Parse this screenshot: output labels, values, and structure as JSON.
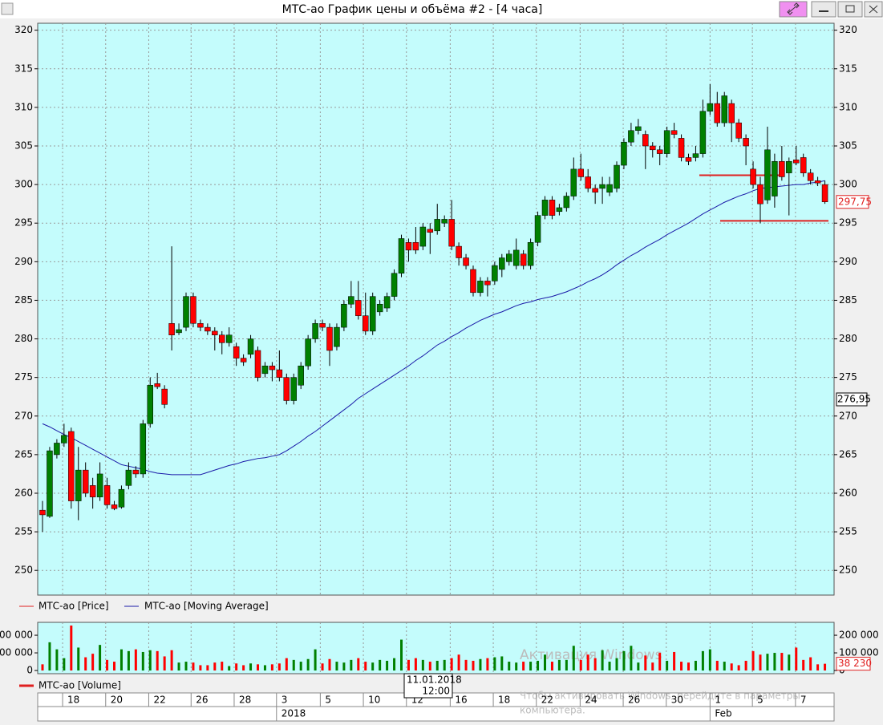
{
  "chart_data": {
    "type": "candlestick",
    "title": "МТС-ао График цены и объёма #2 - [4 часа]",
    "ylim": [
      246.8,
      320.9
    ],
    "yticks": [
      250,
      255,
      260,
      265,
      270,
      275,
      280,
      285,
      290,
      295,
      300,
      305,
      310,
      315,
      320
    ],
    "grid": true,
    "up_color": "#008000",
    "down_color": "#ff0000",
    "series": [
      {
        "name": "МТС-ао [Price]",
        "color": "#e02020",
        "values": [
          [
            257.8,
            259,
            255,
            257.2
          ],
          [
            257,
            266,
            256.8,
            265.5
          ],
          [
            265,
            267,
            264.5,
            266.5
          ],
          [
            266.5,
            269,
            266,
            267.5
          ],
          [
            268,
            268.5,
            258,
            259
          ],
          [
            259,
            266,
            256.5,
            263
          ],
          [
            263,
            264,
            259.5,
            260
          ],
          [
            261,
            262,
            258,
            259.5
          ],
          [
            259.5,
            264,
            259,
            262.5
          ],
          [
            261,
            262,
            258,
            258.5
          ],
          [
            258.5,
            259,
            257.8,
            258
          ],
          [
            258.2,
            261,
            258,
            260.5
          ],
          [
            261,
            264,
            260.5,
            263
          ],
          [
            263,
            263.5,
            262,
            262.5
          ],
          [
            262.5,
            269.5,
            262,
            269
          ],
          [
            269,
            275,
            268.5,
            274
          ],
          [
            274.2,
            275.6,
            273.5,
            273.8
          ],
          [
            273.5,
            274,
            271,
            271.5
          ],
          [
            282,
            292,
            278.5,
            280.5
          ],
          [
            280.8,
            282,
            280.5,
            281.2
          ],
          [
            281.5,
            286,
            281,
            285.5
          ],
          [
            285.5,
            286,
            281.5,
            282
          ],
          [
            282,
            282.5,
            281,
            281.5
          ],
          [
            281.5,
            282,
            280.5,
            281
          ],
          [
            281,
            281.5,
            278.5,
            280.5
          ],
          [
            280.5,
            281,
            278,
            279.5
          ],
          [
            279.5,
            281.5,
            279,
            280.5
          ],
          [
            279,
            279.5,
            276.5,
            277.5
          ],
          [
            277.5,
            278,
            276.5,
            277
          ],
          [
            278,
            280.5,
            277.5,
            280
          ],
          [
            278.5,
            279,
            274.5,
            275
          ],
          [
            275.5,
            277,
            275,
            276.5
          ],
          [
            276.5,
            277,
            274.5,
            276
          ],
          [
            276,
            278.5,
            274.5,
            275
          ],
          [
            275,
            275.5,
            271.5,
            272
          ],
          [
            272,
            275.5,
            271.5,
            275
          ],
          [
            274,
            277,
            273.5,
            276.5
          ],
          [
            276.5,
            280.5,
            276,
            280
          ],
          [
            280,
            282.5,
            279.5,
            282
          ],
          [
            282,
            282.5,
            281,
            281.5
          ],
          [
            281.5,
            282,
            276.5,
            278.5
          ],
          [
            279,
            282,
            278.5,
            281.5
          ],
          [
            281.5,
            285,
            281,
            284.5
          ],
          [
            284.5,
            287.5,
            284,
            285.5
          ],
          [
            285,
            287.5,
            282.5,
            283
          ],
          [
            283,
            286,
            280.5,
            281
          ],
          [
            281,
            286,
            280.5,
            285.5
          ],
          [
            283.5,
            285,
            283,
            284.5
          ],
          [
            284,
            286,
            283.5,
            285.5
          ],
          [
            285.5,
            289,
            285,
            288.5
          ],
          [
            288.5,
            293.5,
            288,
            293
          ],
          [
            292.5,
            293,
            290,
            291.5
          ],
          [
            292.5,
            294.5,
            291,
            291.5
          ],
          [
            292,
            295,
            291.5,
            294.5
          ],
          [
            294.2,
            295,
            291,
            293.8
          ],
          [
            294,
            297.5,
            293.5,
            295.5
          ],
          [
            295,
            296,
            294.5,
            295.5
          ],
          [
            295.5,
            298,
            291.5,
            292
          ],
          [
            292,
            292.5,
            289.5,
            290.5
          ],
          [
            290.5,
            291,
            289,
            289.5
          ],
          [
            289,
            289.5,
            285.5,
            286
          ],
          [
            286,
            288,
            285.5,
            287.5
          ],
          [
            287.5,
            288,
            285.5,
            287
          ],
          [
            287.5,
            290,
            287,
            289.5
          ],
          [
            289,
            291,
            288,
            290.5
          ],
          [
            290,
            291.5,
            289.5,
            291
          ],
          [
            289.5,
            293,
            289,
            291.5
          ],
          [
            291,
            291.5,
            289,
            289.5
          ],
          [
            289.5,
            293,
            289,
            292.5
          ],
          [
            292.5,
            296.5,
            292,
            296
          ],
          [
            296,
            298.5,
            295.5,
            298
          ],
          [
            298,
            298.5,
            295.5,
            296
          ],
          [
            296.5,
            297.5,
            296,
            297
          ],
          [
            297,
            299,
            296.5,
            298.5
          ],
          [
            298.5,
            303.5,
            298,
            302
          ],
          [
            302,
            304,
            300.5,
            301
          ],
          [
            301,
            302,
            299,
            299.5
          ],
          [
            299.5,
            300,
            297.5,
            299
          ],
          [
            299.5,
            301,
            297.5,
            300
          ],
          [
            299,
            301,
            298.5,
            300
          ],
          [
            299.5,
            303,
            299,
            302.5
          ],
          [
            302.5,
            306,
            302,
            305.5
          ],
          [
            305.5,
            308,
            305,
            307
          ],
          [
            307,
            308.5,
            306.5,
            307.5
          ],
          [
            306.5,
            307,
            302,
            305
          ],
          [
            305,
            305.5,
            303.5,
            304.5
          ],
          [
            304.5,
            305,
            302.5,
            304
          ],
          [
            304,
            307.5,
            303.5,
            307
          ],
          [
            307,
            308,
            306,
            306.5
          ],
          [
            306,
            306.5,
            303,
            303.5
          ],
          [
            303.5,
            304,
            302.5,
            303
          ],
          [
            303.5,
            305,
            303,
            304
          ],
          [
            304,
            311,
            303.5,
            309.5
          ],
          [
            309.5,
            313,
            309,
            310.5
          ],
          [
            310.5,
            312,
            307.5,
            308
          ],
          [
            308,
            312,
            307.5,
            311.5
          ],
          [
            310.5,
            311,
            305.5,
            308
          ],
          [
            308,
            308.5,
            305.5,
            306
          ],
          [
            306,
            306.5,
            302.5,
            305
          ],
          [
            302,
            303,
            299.5,
            300
          ],
          [
            300,
            301,
            295,
            297.5
          ],
          [
            298,
            307.5,
            297.5,
            304.5
          ],
          [
            298.5,
            304,
            297,
            303
          ],
          [
            303,
            305,
            300.5,
            301
          ],
          [
            301.5,
            303.5,
            296,
            303
          ],
          [
            303.2,
            305,
            302.5,
            302.8
          ],
          [
            303.5,
            304,
            301,
            301.5
          ],
          [
            301.5,
            302,
            300,
            300.5
          ],
          [
            300.5,
            301,
            299.8,
            300.2
          ],
          [
            300,
            300.5,
            297.5,
            297.75
          ]
        ]
      },
      {
        "name": "МТС-ао [Moving Average]",
        "color": "#1a1aa8",
        "values": [
          269.0,
          268.6,
          268.1,
          267.6,
          267.2,
          266.7,
          266.2,
          265.7,
          265.2,
          264.7,
          264.2,
          263.7,
          263.5,
          263.3,
          263.1,
          262.8,
          262.6,
          262.5,
          262.4,
          262.4,
          262.4,
          262.4,
          262.4,
          262.7,
          263.0,
          263.3,
          263.6,
          263.8,
          264.1,
          264.3,
          264.5,
          264.6,
          264.8,
          265.0,
          265.5,
          266.1,
          266.7,
          267.4,
          268.0,
          268.7,
          269.4,
          270.1,
          270.8,
          271.5,
          272.3,
          272.9,
          273.5,
          274.1,
          274.7,
          275.3,
          275.9,
          276.5,
          277.2,
          277.8,
          278.5,
          279.2,
          279.7,
          280.3,
          280.8,
          281.4,
          281.9,
          282.4,
          282.8,
          283.2,
          283.5,
          283.9,
          284.3,
          284.6,
          284.8,
          285.1,
          285.3,
          285.5,
          285.8,
          286.1,
          286.5,
          286.9,
          287.4,
          287.8,
          288.3,
          288.9,
          289.6,
          290.2,
          290.8,
          291.3,
          291.9,
          292.4,
          292.9,
          293.5,
          294.0,
          294.5,
          295.0,
          295.6,
          296.2,
          296.7,
          297.2,
          297.7,
          298.1,
          298.5,
          298.8,
          299.2,
          299.5,
          299.6,
          299.7,
          299.8,
          299.9,
          300.0,
          300.0,
          300.2,
          300.3,
          300.5
        ]
      }
    ],
    "levels": [
      301.2,
      295.3
    ],
    "level_color": "#e02020",
    "last_price": {
      "value": 297.75,
      "label": "297,75"
    },
    "side_label": "276,95",
    "volume": {
      "name": "МТС-ао [Volume]",
      "color": "#e02020",
      "ylim": [
        -18000,
        273000
      ],
      "yticks": [
        0,
        {
          "value": 100000,
          "label": "100 000"
        },
        {
          "value": 200000,
          "label": "200 000"
        }
      ],
      "last": {
        "value": 38230,
        "label": "38 230"
      },
      "values": [
        35000,
        160000,
        120000,
        70000,
        255000,
        130000,
        75000,
        95000,
        145000,
        60000,
        50000,
        120000,
        110000,
        120000,
        105000,
        115000,
        110000,
        80000,
        115000,
        45000,
        50000,
        45000,
        30000,
        30000,
        45000,
        50000,
        25000,
        40000,
        30000,
        40000,
        35000,
        30000,
        35000,
        40000,
        70000,
        60000,
        50000,
        65000,
        120000,
        40000,
        65000,
        50000,
        45000,
        60000,
        70000,
        50000,
        45000,
        60000,
        55000,
        70000,
        175000,
        60000,
        70000,
        60000,
        50000,
        55000,
        60000,
        70000,
        90000,
        60000,
        55000,
        65000,
        70000,
        75000,
        80000,
        50000,
        45000,
        50000,
        50000,
        55000,
        90000,
        50000,
        60000,
        60000,
        140000,
        60000,
        90000,
        70000,
        115000,
        50000,
        70000,
        110000,
        140000,
        45000,
        85000,
        45000,
        100000,
        55000,
        105000,
        50000,
        45000,
        55000,
        110000,
        120000,
        55000,
        50000,
        40000,
        30000,
        55000,
        110000,
        90000,
        95000,
        100000,
        100000,
        90000,
        130000,
        60000,
        75000,
        35000,
        38230
      ]
    },
    "xticks": [
      {
        "value": 2.8,
        "label": "18"
      },
      {
        "value": 8.8,
        "label": "20"
      },
      {
        "value": 14.8,
        "label": "22"
      },
      {
        "value": 20.7,
        "label": "26"
      },
      {
        "value": 26.7,
        "label": "28"
      },
      {
        "value": 32.6,
        "label": "3"
      },
      {
        "value": 38.7,
        "label": "5"
      },
      {
        "value": 44.7,
        "label": "10"
      },
      {
        "value": 50.7,
        "label": "12"
      },
      {
        "value": 56.8,
        "label": "16"
      },
      {
        "value": 62.8,
        "label": "18"
      },
      {
        "value": 68.8,
        "label": "22"
      },
      {
        "value": 74.9,
        "label": "24"
      },
      {
        "value": 80.9,
        "label": "26"
      },
      {
        "value": 86.9,
        "label": "30"
      },
      {
        "value": 93,
        "label": "1"
      },
      {
        "value": 98.9,
        "label": "5"
      },
      {
        "value": 104.9,
        "label": "7"
      }
    ],
    "xticks2": [
      {
        "value": 32.6,
        "label": "2018"
      },
      {
        "value": 93,
        "label": "Feb"
      }
    ],
    "tooltip": {
      "date": "11.01.2018",
      "time": "12:00"
    }
  },
  "watermark": {
    "title": "Активация Windows",
    "line1": "Чтобы активировать Windows, перейдите в параметры",
    "line2": "компьютера."
  }
}
